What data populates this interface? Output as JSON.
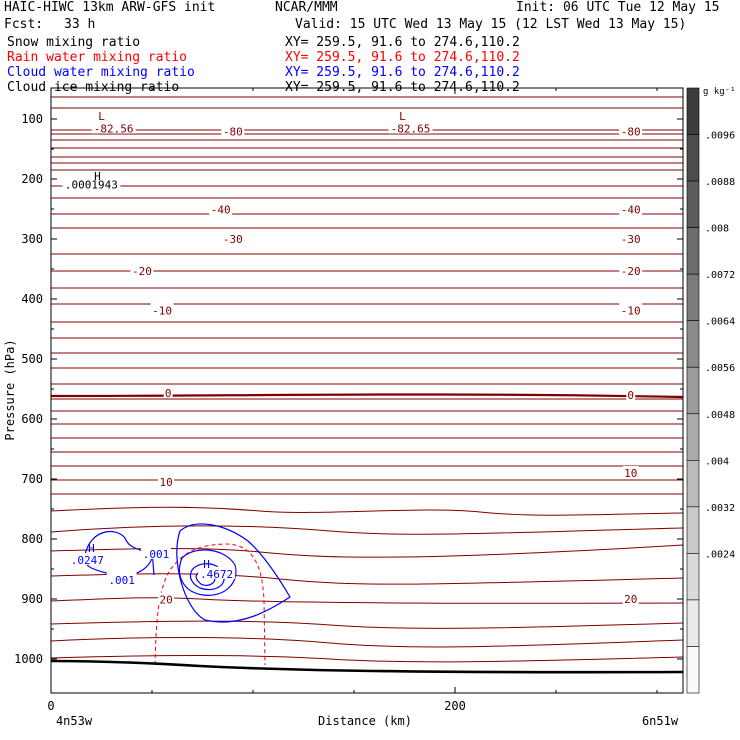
{
  "header": {
    "model": "HAIC-HIWC 13km ARW-GFS init",
    "org": "NCAR/MMM",
    "init": "Init: 06 UTC Tue 12 May 15",
    "fcst_label": "Fcst:",
    "fcst_value": "33 h",
    "valid": "Valid: 15 UTC Wed 13 May 15 (12 LST Wed 13 May 15)",
    "fields": [
      {
        "name": "Snow mixing ratio",
        "xy": "XY= 259.5, 91.6 to 274.6,110.2",
        "color": "#000000"
      },
      {
        "name": "Rain water mixing ratio",
        "xy": "XY= 259.5, 91.6 to 274.6,110.2",
        "color": "#ff0000"
      },
      {
        "name": "Cloud water mixing ratio",
        "xy": "XY= 259.5, 91.6 to 274.6,110.2",
        "color": "#0000ff"
      },
      {
        "name": "Cloud ice mixing ratio",
        "xy": "XY= 259.5, 91.6 to 274.6,110.2",
        "color": "#000000"
      }
    ]
  },
  "colorbar": {
    "unit": "g kg⁻¹",
    "labels": [
      ".0096",
      ".0088",
      ".008",
      ".0072",
      ".0064",
      ".0056",
      ".0048",
      ".004",
      ".0032",
      ".0024"
    ]
  },
  "chart_data": {
    "type": "contour-cross-section",
    "ylabel": "Pressure (hPa)",
    "xlabel": "Distance (km)",
    "yticks": [
      100,
      200,
      300,
      400,
      500,
      600,
      700,
      800,
      900,
      1000
    ],
    "xticks": [
      0,
      200
    ],
    "xlim": [
      0,
      300
    ],
    "x_endpoints": [
      "4n53w",
      "6n51w"
    ],
    "temperature_contours": {
      "color": "#800000",
      "labels": [
        {
          "text": "-82.56",
          "x": 31,
          "p": 116
        },
        {
          "text": "-82.65",
          "x": 178,
          "p": 116
        },
        {
          "text": "-80",
          "x": 90,
          "p": 121
        },
        {
          "text": "-80",
          "x": 287,
          "p": 121
        },
        {
          "text": "-40",
          "x": 84,
          "p": 251
        },
        {
          "text": "-40",
          "x": 287,
          "p": 251
        },
        {
          "text": "-30",
          "x": 90,
          "p": 300
        },
        {
          "text": "-30",
          "x": 287,
          "p": 300
        },
        {
          "text": "-20",
          "x": 45,
          "p": 353
        },
        {
          "text": "-20",
          "x": 287,
          "p": 353
        },
        {
          "text": "-10",
          "x": 55,
          "p": 419
        },
        {
          "text": "-10",
          "x": 287,
          "p": 419
        },
        {
          "text": "0",
          "x": 58,
          "p": 557
        },
        {
          "text": "0",
          "x": 287,
          "p": 560
        },
        {
          "text": "10",
          "x": 57,
          "p": 705
        },
        {
          "text": "10",
          "x": 287,
          "p": 690
        },
        {
          "text": "20",
          "x": 57,
          "p": 901
        },
        {
          "text": "20",
          "x": 287,
          "p": 900
        }
      ],
      "extremes": [
        {
          "label": "L",
          "x": 25,
          "p": 95
        },
        {
          "label": "L",
          "x": 174,
          "p": 95
        }
      ]
    },
    "cloud_water": {
      "color": "#0000ff",
      "labels": [
        {
          "text": ".0247",
          "x": 18,
          "p": 835
        },
        {
          "text": ".001",
          "x": 52,
          "p": 825
        },
        {
          "text": ".001",
          "x": 35,
          "p": 868
        },
        {
          "text": ".4672",
          "x": 82,
          "p": 858
        }
      ],
      "extremes": [
        {
          "label": "H",
          "x": 20,
          "p": 815
        },
        {
          "label": "H",
          "x": 77,
          "p": 842
        }
      ]
    },
    "snow": {
      "color": "#000000",
      "labels": [
        {
          "text": ".0001943",
          "x": 20,
          "p": 209
        }
      ],
      "extremes": [
        {
          "label": "H",
          "x": 23,
          "p": 195
        }
      ]
    },
    "rain_water": {
      "color": "#ff0000"
    }
  }
}
